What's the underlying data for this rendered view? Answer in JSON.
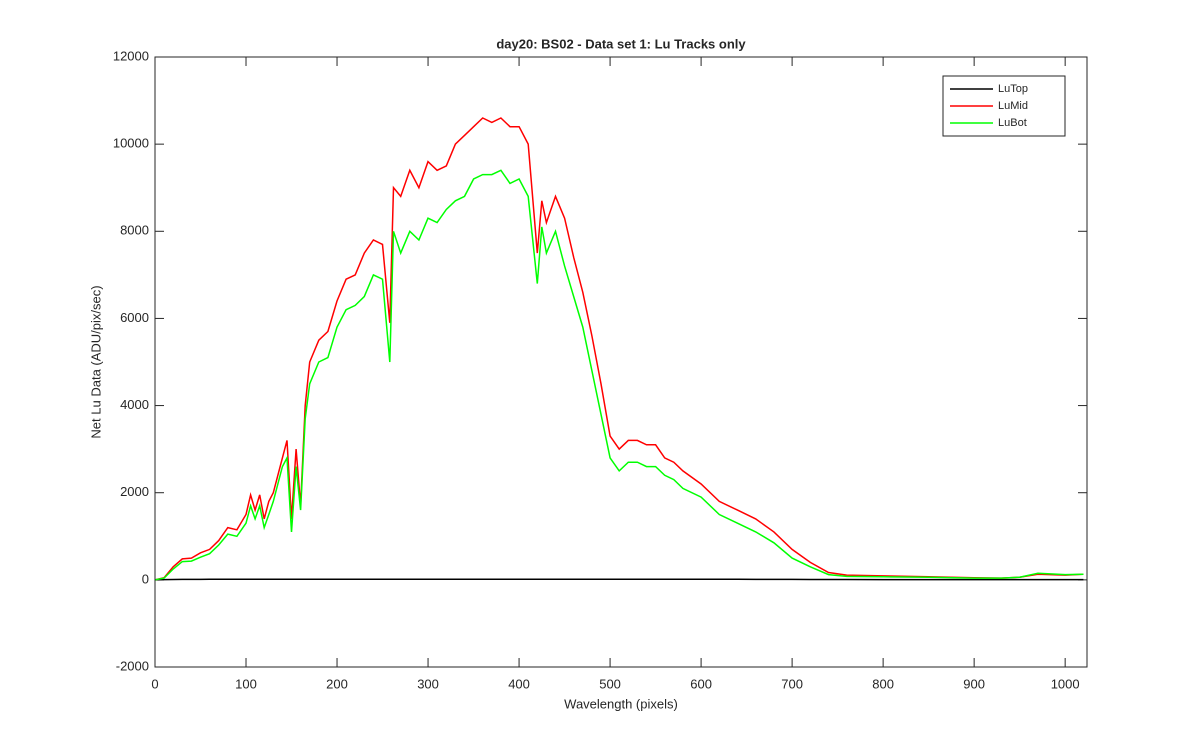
{
  "chart_data": {
    "type": "line",
    "title": "day20: BS02 - Data set 1: Lu Tracks only",
    "x_label": "Wavelength (pixels)",
    "y_label": "Net Lu Data (ADU/pix/sec)",
    "x": [
      0,
      10,
      20,
      30,
      40,
      50,
      60,
      70,
      80,
      90,
      100,
      105,
      110,
      115,
      120,
      125,
      130,
      140,
      145,
      150,
      155,
      160,
      165,
      170,
      180,
      190,
      200,
      210,
      220,
      230,
      240,
      250,
      258,
      262,
      270,
      280,
      290,
      300,
      310,
      320,
      330,
      340,
      350,
      360,
      370,
      380,
      390,
      400,
      410,
      420,
      425,
      430,
      440,
      450,
      460,
      470,
      480,
      490,
      500,
      510,
      520,
      530,
      540,
      550,
      560,
      570,
      580,
      600,
      620,
      640,
      660,
      680,
      700,
      720,
      740,
      760,
      800,
      850,
      900,
      930,
      950,
      970,
      1000,
      1020
    ],
    "series": [
      {
        "name": "LuTop",
        "color": "#000000",
        "values": [
          0,
          5,
          8,
          10,
          10,
          10,
          12,
          12,
          12,
          12,
          12,
          12,
          12,
          12,
          12,
          12,
          12,
          14,
          14,
          14,
          14,
          14,
          14,
          14,
          15,
          15,
          15,
          15,
          15,
          15,
          15,
          15,
          15,
          15,
          15,
          15,
          15,
          15,
          15,
          15,
          15,
          15,
          15,
          15,
          15,
          15,
          15,
          15,
          15,
          15,
          15,
          15,
          15,
          15,
          15,
          15,
          14,
          14,
          14,
          14,
          14,
          14,
          14,
          13,
          13,
          13,
          13,
          12,
          12,
          12,
          11,
          10,
          10,
          9,
          8,
          8,
          7,
          6,
          5,
          5,
          5,
          5,
          5,
          5
        ]
      },
      {
        "name": "LuMid",
        "color": "#ff0000",
        "values": [
          0,
          50,
          300,
          480,
          500,
          620,
          700,
          900,
          1200,
          1150,
          1500,
          1950,
          1600,
          1950,
          1400,
          1800,
          2000,
          2800,
          3200,
          1400,
          3000,
          1700,
          4000,
          5000,
          5500,
          5700,
          6400,
          6900,
          7000,
          7500,
          7800,
          7700,
          5900,
          9000,
          8800,
          9400,
          9000,
          9600,
          9400,
          9500,
          10000,
          10200,
          10400,
          10600,
          10500,
          10600,
          10400,
          10400,
          10000,
          7500,
          8700,
          8200,
          8800,
          8300,
          7400,
          6600,
          5600,
          4500,
          3300,
          3000,
          3200,
          3200,
          3100,
          3100,
          2800,
          2700,
          2500,
          2200,
          1800,
          1600,
          1400,
          1100,
          700,
          400,
          170,
          110,
          90,
          70,
          50,
          40,
          60,
          130,
          110,
          130
        ]
      },
      {
        "name": "LuBot",
        "color": "#00ff00",
        "values": [
          0,
          40,
          250,
          420,
          430,
          520,
          600,
          800,
          1050,
          1000,
          1300,
          1700,
          1400,
          1700,
          1200,
          1500,
          1800,
          2600,
          2800,
          1100,
          2600,
          1600,
          3700,
          4500,
          5000,
          5100,
          5800,
          6200,
          6300,
          6500,
          7000,
          6900,
          5000,
          8000,
          7500,
          8000,
          7800,
          8300,
          8200,
          8500,
          8700,
          8800,
          9200,
          9300,
          9300,
          9400,
          9100,
          9200,
          8800,
          6800,
          8100,
          7500,
          8000,
          7200,
          6500,
          5800,
          4800,
          3800,
          2800,
          2500,
          2700,
          2700,
          2600,
          2600,
          2400,
          2300,
          2100,
          1900,
          1500,
          1300,
          1100,
          850,
          500,
          300,
          120,
          80,
          70,
          60,
          40,
          40,
          60,
          150,
          120,
          130
        ]
      }
    ],
    "xlim": [
      0,
      1024
    ],
    "ylim": [
      -2000,
      12000
    ],
    "xticks": [
      0,
      100,
      200,
      300,
      400,
      500,
      600,
      700,
      800,
      900,
      1000
    ],
    "yticks": [
      -2000,
      0,
      2000,
      4000,
      6000,
      8000,
      10000,
      12000
    ],
    "legend": "upper right"
  }
}
